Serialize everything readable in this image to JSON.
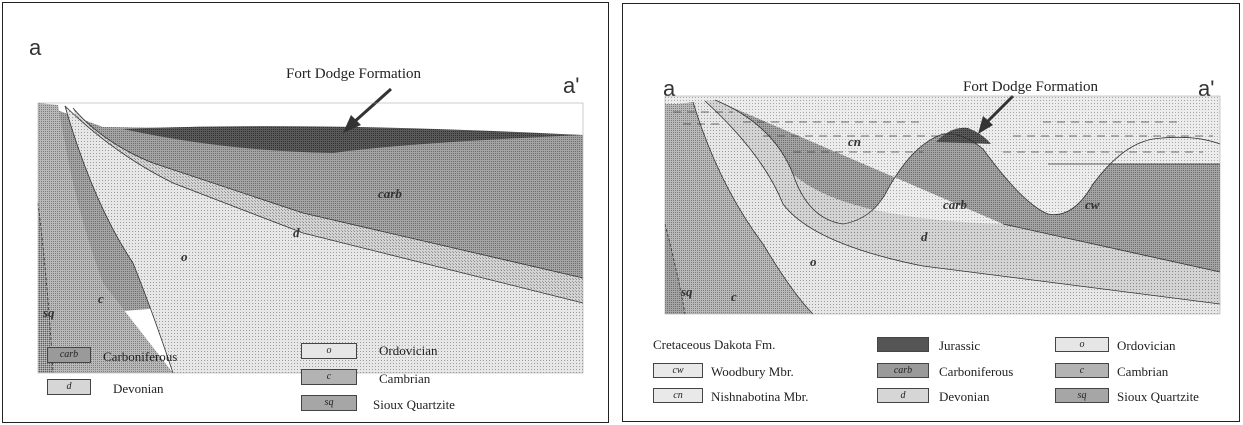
{
  "left_panel": {
    "corner_left": "a",
    "corner_right": "a'",
    "callout": "Fort Dodge Formation",
    "unit_labels": {
      "carb": "carb",
      "d": "d",
      "o": "o",
      "c": "c",
      "sq": "sq"
    },
    "legend": [
      {
        "code": "carb",
        "label": "Carboniferous"
      },
      {
        "code": "d",
        "label": "Devonian"
      },
      {
        "code": "o",
        "label": "Ordovician"
      },
      {
        "code": "c",
        "label": "Cambrian"
      },
      {
        "code": "sq",
        "label": "Sioux Quartzite"
      }
    ]
  },
  "right_panel": {
    "corner_left": "a",
    "corner_right": "a'",
    "callout": "Fort Dodge Formation",
    "unit_labels": {
      "cn": "cn",
      "carb": "carb",
      "cw": "cw",
      "d": "d",
      "o": "o",
      "c": "c",
      "sq": "sq"
    },
    "legend_heading": "Cretaceous Dakota Fm.",
    "legend": [
      {
        "code": "cw",
        "label": "Woodbury Mbr."
      },
      {
        "code": "cn",
        "label": "Nishnabotina Mbr."
      },
      {
        "code": "",
        "label": "Jurassic"
      },
      {
        "code": "carb",
        "label": "Carboniferous"
      },
      {
        "code": "d",
        "label": "Devonian"
      },
      {
        "code": "o",
        "label": "Ordovician"
      },
      {
        "code": "c",
        "label": "Cambrian"
      },
      {
        "code": "sq",
        "label": "Sioux Quartzite"
      }
    ]
  },
  "colors": {
    "carboniferous": "#9a9a9a",
    "devonian": "#d6d6d6",
    "ordovician": "#e6e6e6",
    "cambrian": "#b3b3b3",
    "sioux_quartzite": "#a6a6a6",
    "jurassic": "#555555",
    "cretaceous": "#e9e9e9"
  }
}
